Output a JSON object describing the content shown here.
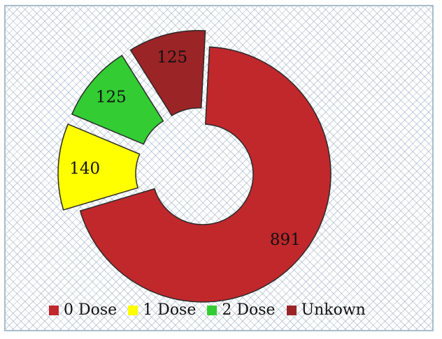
{
  "chart_data": {
    "type": "pie",
    "style": "donut, exploded slices",
    "title": "",
    "categories": [
      "0 Dose",
      "1 Dose",
      "2 Dose",
      "Unkown"
    ],
    "values": [
      891,
      140,
      125,
      125
    ],
    "data_labels": [
      "891",
      "140",
      "125",
      "125"
    ],
    "colors": [
      "#c0282c",
      "#ffff00",
      "#33cc33",
      "#9b2427"
    ],
    "legend_position": "bottom",
    "grid": false
  }
}
